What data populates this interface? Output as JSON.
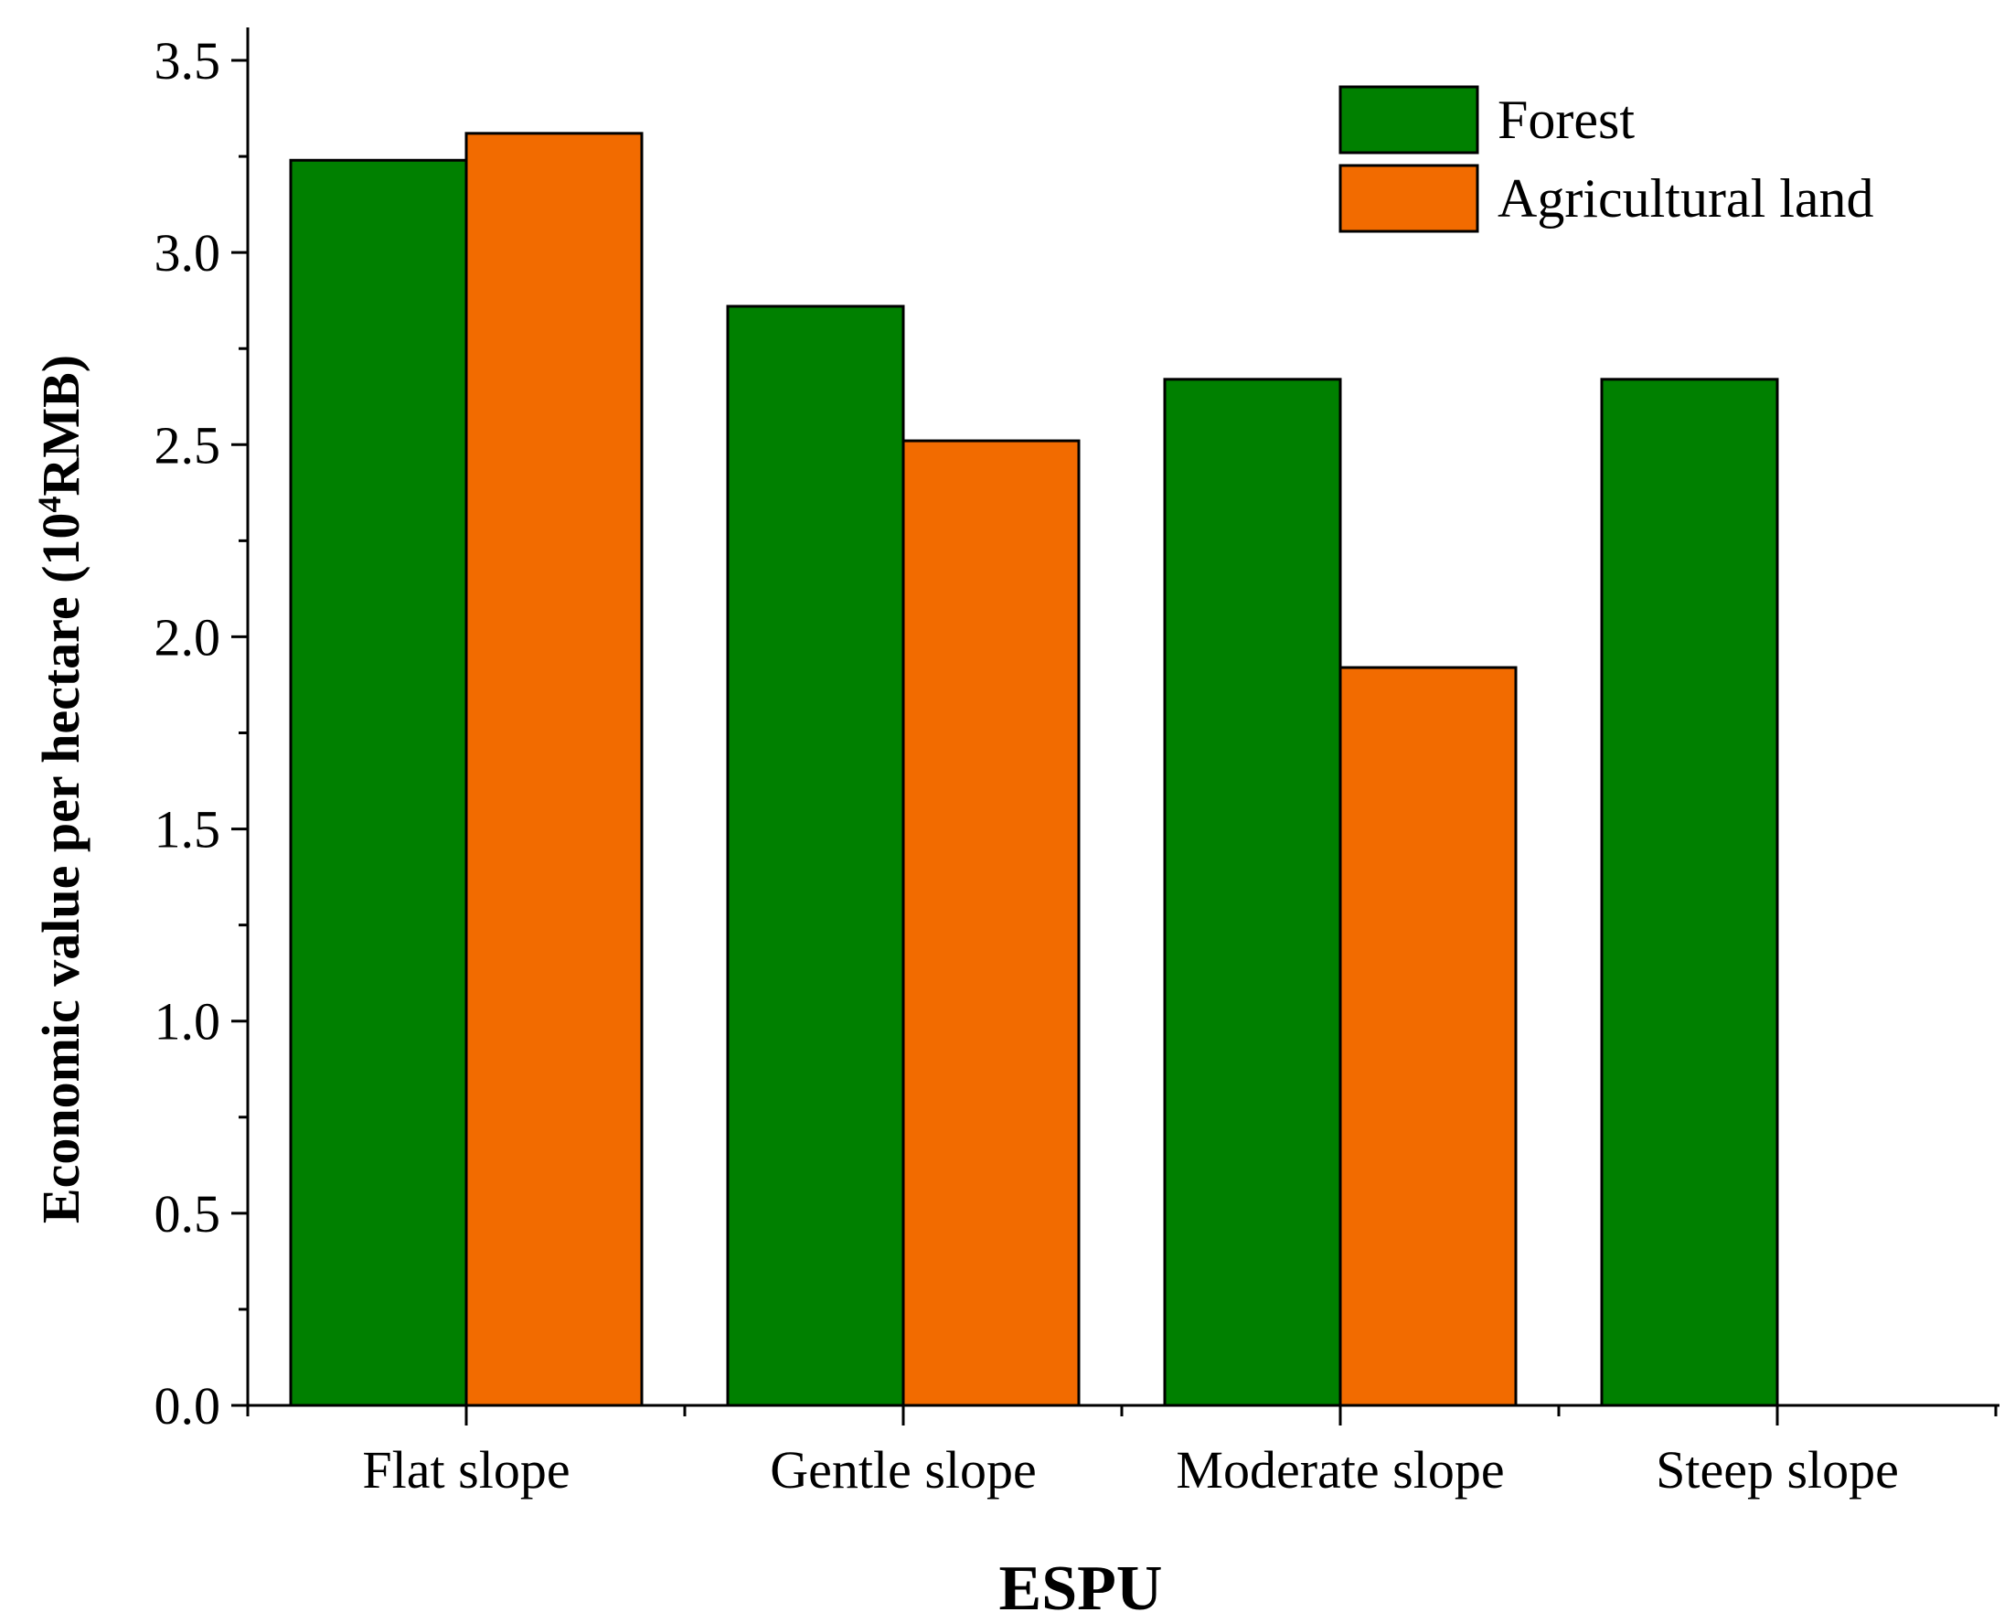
{
  "chart_data": {
    "type": "bar",
    "title": "",
    "xlabel": "ESPU",
    "ylabel": {
      "main": "Economic value per hectare (10",
      "superscript": "4",
      "tail": "RMB)"
    },
    "categories": [
      "Flat slope",
      "Gentle slope",
      "Moderate slope",
      "Steep slope"
    ],
    "series": [
      {
        "name": "Forest",
        "color": "#008000",
        "values": [
          3.24,
          2.86,
          2.67,
          2.67
        ]
      },
      {
        "name": "Agricultural land",
        "color": "#F26B00",
        "values": [
          3.31,
          2.51,
          1.92,
          null
        ]
      }
    ],
    "ylim": [
      0,
      3.5
    ],
    "yticks": [
      "0.0",
      "0.5",
      "1.0",
      "1.5",
      "2.0",
      "2.5",
      "3.0",
      "3.5"
    ],
    "grid": false,
    "legend_position": "top-right"
  }
}
